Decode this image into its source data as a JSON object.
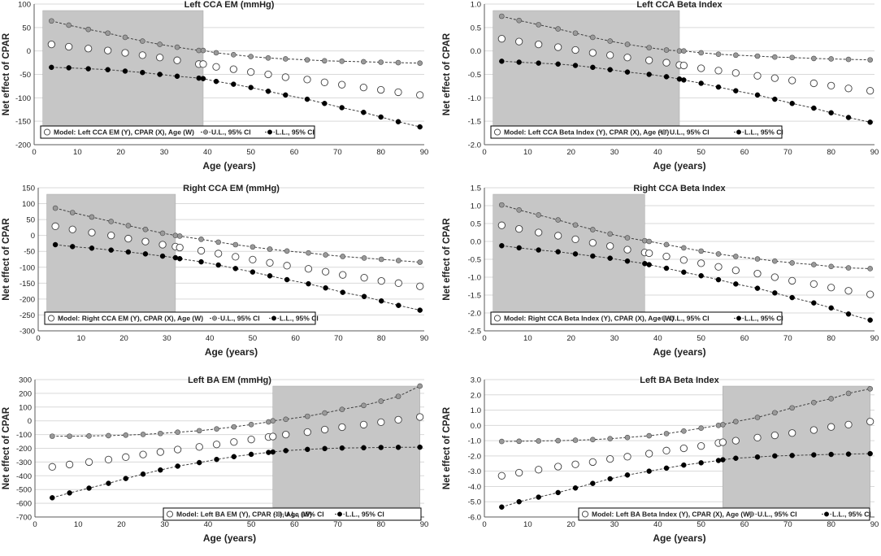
{
  "chart_data": [
    {
      "type": "scatter",
      "title": "Left CCA EM (mmHg)",
      "xlabel": "Age (years)",
      "ylabel": "Net effect of CPAR",
      "xlim": [
        0,
        90
      ],
      "ylim": [
        -200,
        100
      ],
      "xticks": [
        0,
        10,
        20,
        30,
        40,
        50,
        60,
        70,
        80,
        90
      ],
      "yticks": [
        -200,
        -150,
        -100,
        -50,
        0,
        50,
        100
      ],
      "ytick_labels": [
        "-200",
        "-150",
        "-100",
        "-50",
        "0",
        "50",
        "100"
      ],
      "shade": [
        2,
        39
      ],
      "x": [
        4,
        8,
        12.5,
        17,
        21,
        25,
        29,
        33,
        38,
        39,
        42,
        46,
        50,
        54,
        58,
        63,
        67,
        71,
        76,
        80,
        84,
        89
      ],
      "series": [
        {
          "name": "Model: Left CCA EM (Y), CPAR (X), Age (W)",
          "style": "open",
          "values": [
            14,
            9,
            5,
            1,
            -4,
            -9,
            -14,
            -20,
            -28,
            -28,
            -34,
            -39,
            -45,
            -50,
            -56,
            -61,
            -67,
            -72,
            -78,
            -83,
            -88,
            -94
          ]
        },
        {
          "name": "U.L., 95% CI",
          "style": "gray",
          "values": [
            64,
            55,
            46,
            38,
            29,
            21,
            14,
            8,
            1,
            1,
            -4,
            -8,
            -12,
            -15,
            -17,
            -19,
            -21,
            -22,
            -23,
            -24,
            -25,
            -26
          ]
        },
        {
          "name": "L.L., 95% CI",
          "style": "black",
          "values": [
            -35,
            -36,
            -38,
            -40,
            -43,
            -46,
            -50,
            -54,
            -58,
            -59,
            -65,
            -71,
            -78,
            -86,
            -94,
            -103,
            -112,
            -121,
            -131,
            -141,
            -151,
            -162
          ]
        }
      ]
    },
    {
      "type": "scatter",
      "title": "Left CCA Beta Index",
      "xlabel": "Age (years)",
      "ylabel": "Net effect of CPAR",
      "xlim": [
        0,
        90
      ],
      "ylim": [
        -2.0,
        1.0
      ],
      "xticks": [
        0,
        10,
        20,
        30,
        40,
        50,
        60,
        70,
        80,
        90
      ],
      "yticks": [
        -2,
        -1.5,
        -1,
        -0.5,
        0,
        0.5,
        1
      ],
      "ytick_labels": [
        "-2.0",
        "-1.5",
        "-1.0",
        "-0.5",
        "0.0",
        "0.5",
        "1.0"
      ],
      "shade": [
        2,
        45
      ],
      "x": [
        4,
        8,
        12.5,
        17,
        21,
        25,
        29,
        33,
        38,
        42,
        45,
        46,
        50,
        54,
        58,
        63,
        67,
        71,
        76,
        80,
        84,
        89
      ],
      "series": [
        {
          "name": "Model: Left CCA Beta Index (Y), CPAR (X), Age (W)",
          "style": "open",
          "values": [
            0.26,
            0.2,
            0.14,
            0.08,
            0.02,
            -0.04,
            -0.09,
            -0.14,
            -0.2,
            -0.25,
            -0.3,
            -0.31,
            -0.37,
            -0.42,
            -0.47,
            -0.53,
            -0.58,
            -0.63,
            -0.69,
            -0.74,
            -0.8,
            -0.85
          ]
        },
        {
          "name": "U.L., 95% CI",
          "style": "gray",
          "values": [
            0.74,
            0.65,
            0.56,
            0.47,
            0.38,
            0.29,
            0.21,
            0.14,
            0.07,
            0.02,
            0,
            0,
            -0.04,
            -0.07,
            -0.09,
            -0.11,
            -0.13,
            -0.14,
            -0.16,
            -0.17,
            -0.18,
            -0.19
          ]
        },
        {
          "name": "L.L., 95% CI",
          "style": "black",
          "values": [
            -0.22,
            -0.24,
            -0.26,
            -0.28,
            -0.31,
            -0.35,
            -0.4,
            -0.45,
            -0.5,
            -0.55,
            -0.6,
            -0.62,
            -0.69,
            -0.77,
            -0.85,
            -0.94,
            -1.03,
            -1.12,
            -1.22,
            -1.32,
            -1.42,
            -1.52
          ]
        }
      ]
    },
    {
      "type": "scatter",
      "title": "Right CCA EM (mmHg)",
      "xlabel": "Age (years)",
      "ylabel": "Net effect of CPAR",
      "xlim": [
        0,
        90
      ],
      "ylim": [
        -300,
        150
      ],
      "xticks": [
        0,
        10,
        20,
        30,
        40,
        50,
        60,
        70,
        80,
        90
      ],
      "yticks": [
        -300,
        -250,
        -200,
        -150,
        -100,
        -50,
        0,
        50,
        100,
        150
      ],
      "ytick_labels": [
        "-300",
        "-250",
        "-200",
        "-150",
        "-100",
        "-50",
        "0",
        "50",
        "100",
        "150"
      ],
      "shade": [
        2,
        32
      ],
      "x": [
        4,
        8,
        12.5,
        17,
        21,
        25,
        29,
        32,
        33,
        38,
        42,
        46,
        50,
        54,
        58,
        63,
        67,
        71,
        76,
        80,
        84,
        89
      ],
      "series": [
        {
          "name": "Model: Right CCA EM (Y), CPAR (X), Age (W)",
          "style": "open",
          "values": [
            29,
            19,
            9,
            0,
            -10,
            -19,
            -29,
            -35,
            -38,
            -48,
            -57,
            -67,
            -76,
            -86,
            -95,
            -105,
            -114,
            -124,
            -133,
            -143,
            -150,
            -160
          ]
        },
        {
          "name": "U.L., 95% CI",
          "style": "gray",
          "values": [
            86,
            72,
            58,
            44,
            31,
            19,
            7,
            0,
            -2,
            -12,
            -21,
            -29,
            -36,
            -43,
            -49,
            -55,
            -61,
            -66,
            -71,
            -75,
            -79,
            -84
          ]
        },
        {
          "name": "L.L., 95% CI",
          "style": "black",
          "values": [
            -29,
            -35,
            -40,
            -46,
            -52,
            -58,
            -65,
            -70,
            -73,
            -83,
            -93,
            -104,
            -115,
            -127,
            -139,
            -152,
            -165,
            -179,
            -192,
            -206,
            -220,
            -235
          ]
        }
      ]
    },
    {
      "type": "scatter",
      "title": "Right CCA Beta Index",
      "xlabel": "Age (years)",
      "ylabel": "Net effect of CPAR",
      "xlim": [
        0,
        90
      ],
      "ylim": [
        -2.5,
        1.5
      ],
      "xticks": [
        0,
        10,
        20,
        30,
        40,
        50,
        60,
        70,
        80,
        90
      ],
      "yticks": [
        -2.5,
        -2,
        -1.5,
        -1,
        -0.5,
        0,
        0.5,
        1,
        1.5
      ],
      "ytick_labels": [
        "-2.5",
        "-2.0",
        "-1.5",
        "-1.0",
        "-0.5",
        "0.0",
        "0.5",
        "1.0",
        "1.5"
      ],
      "shade": [
        2,
        37
      ],
      "x": [
        4,
        8,
        12.5,
        17,
        21,
        25,
        29,
        33,
        37,
        38,
        42,
        46,
        50,
        54,
        58,
        63,
        67,
        71,
        76,
        80,
        84,
        89
      ],
      "series": [
        {
          "name": "Model: Right CCA Beta Index (Y), CPAR (X), Age (W)",
          "style": "open",
          "values": [
            0.45,
            0.35,
            0.25,
            0.16,
            0.06,
            -0.04,
            -0.13,
            -0.23,
            -0.31,
            -0.33,
            -0.42,
            -0.52,
            -0.61,
            -0.71,
            -0.81,
            -0.9,
            -1.0,
            -1.1,
            -1.19,
            -1.29,
            -1.38,
            -1.48
          ]
        },
        {
          "name": "U.L., 95% CI",
          "style": "gray",
          "values": [
            1.02,
            0.88,
            0.74,
            0.6,
            0.46,
            0.33,
            0.21,
            0.1,
            0.02,
            0,
            -0.09,
            -0.18,
            -0.27,
            -0.35,
            -0.42,
            -0.49,
            -0.55,
            -0.6,
            -0.65,
            -0.7,
            -0.74,
            -0.76
          ]
        },
        {
          "name": "L.L., 95% CI",
          "style": "black",
          "values": [
            -0.12,
            -0.18,
            -0.24,
            -0.29,
            -0.35,
            -0.41,
            -0.47,
            -0.55,
            -0.62,
            -0.65,
            -0.75,
            -0.86,
            -0.96,
            -1.07,
            -1.19,
            -1.31,
            -1.44,
            -1.57,
            -1.72,
            -1.86,
            -2.03,
            -2.2
          ]
        }
      ]
    },
    {
      "type": "scatter",
      "title": "Left BA EM (mmHg)",
      "xlabel": "Age (years)",
      "ylabel": "Net effect of CPAR",
      "xlim": [
        0,
        90
      ],
      "ylim": [
        -700,
        300
      ],
      "xticks": [
        0,
        10,
        20,
        30,
        40,
        50,
        60,
        70,
        80,
        90
      ],
      "yticks": [
        -700,
        -600,
        -500,
        -400,
        -300,
        -200,
        -100,
        0,
        100,
        200,
        300
      ],
      "ytick_labels": [
        "-700",
        "-600",
        "-500",
        "-400",
        "-300",
        "-200",
        "-100",
        "0",
        "100",
        "200",
        "300"
      ],
      "shade": [
        55,
        89
      ],
      "x": [
        4,
        8,
        12.5,
        17,
        21,
        25,
        29,
        33,
        38,
        42,
        46,
        50,
        54,
        55,
        58,
        63,
        67,
        71,
        76,
        80,
        84,
        89
      ],
      "series": [
        {
          "name": "Model: Left BA EM (Y), CPAR (X), Age (W)",
          "style": "open",
          "values": [
            -335,
            -318,
            -300,
            -282,
            -264,
            -245,
            -227,
            -209,
            -190,
            -172,
            -154,
            -136,
            -118,
            -114,
            -100,
            -82,
            -64,
            -46,
            -28,
            -10,
            8,
            28
          ]
        },
        {
          "name": "U.L., 95% CI",
          "style": "gray",
          "values": [
            -112,
            -112,
            -110,
            -108,
            -104,
            -99,
            -92,
            -83,
            -72,
            -59,
            -44,
            -27,
            -8,
            0,
            11,
            33,
            57,
            83,
            112,
            143,
            178,
            253
          ]
        },
        {
          "name": "L.L., 95% CI",
          "style": "black",
          "values": [
            -560,
            -525,
            -490,
            -455,
            -420,
            -388,
            -358,
            -330,
            -304,
            -281,
            -261,
            -244,
            -230,
            -227,
            -217,
            -208,
            -202,
            -198,
            -196,
            -194,
            -193,
            -192
          ]
        }
      ]
    },
    {
      "type": "scatter",
      "title": "Left BA Beta Index",
      "xlabel": "Age (years)",
      "ylabel": "Net effect of CPAR",
      "xlim": [
        0,
        90
      ],
      "ylim": [
        -6.0,
        3.0
      ],
      "xticks": [
        0,
        10,
        20,
        30,
        40,
        50,
        60,
        70,
        80,
        90
      ],
      "yticks": [
        -6,
        -5,
        -4,
        -3,
        -2,
        -1,
        0,
        1,
        2,
        3
      ],
      "ytick_labels": [
        "-6.0",
        "-5.0",
        "-4.0",
        "-3.0",
        "-2.0",
        "-1.0",
        "0.0",
        "1.0",
        "2.0",
        "3.0"
      ],
      "shade": [
        55,
        89
      ],
      "x": [
        4,
        8,
        12.5,
        17,
        21,
        25,
        29,
        33,
        38,
        42,
        46,
        50,
        54,
        55,
        58,
        63,
        67,
        71,
        76,
        80,
        84,
        89
      ],
      "series": [
        {
          "name": "Model: Left BA Beta Index (Y), CPAR (X), Age (W)",
          "style": "open",
          "values": [
            -3.3,
            -3.1,
            -2.9,
            -2.7,
            -2.55,
            -2.4,
            -2.2,
            -2.05,
            -1.85,
            -1.65,
            -1.5,
            -1.35,
            -1.15,
            -1.1,
            -1.0,
            -0.8,
            -0.65,
            -0.5,
            -0.3,
            -0.1,
            0.05,
            0.25
          ]
        },
        {
          "name": "U.L., 95% CI",
          "style": "gray",
          "values": [
            -1.05,
            -1.04,
            -1.02,
            -1.0,
            -0.97,
            -0.93,
            -0.87,
            -0.79,
            -0.68,
            -0.54,
            -0.37,
            -0.18,
            0.0,
            0.05,
            0.25,
            0.52,
            0.83,
            1.15,
            1.5,
            1.75,
            2.1,
            2.4
          ]
        },
        {
          "name": "L.L., 95% CI",
          "style": "black",
          "values": [
            -5.35,
            -5.0,
            -4.7,
            -4.4,
            -4.1,
            -3.8,
            -3.5,
            -3.25,
            -3.0,
            -2.8,
            -2.6,
            -2.45,
            -2.3,
            -2.25,
            -2.15,
            -2.07,
            -2.0,
            -1.97,
            -1.93,
            -1.9,
            -1.88,
            -1.85
          ]
        }
      ]
    }
  ]
}
